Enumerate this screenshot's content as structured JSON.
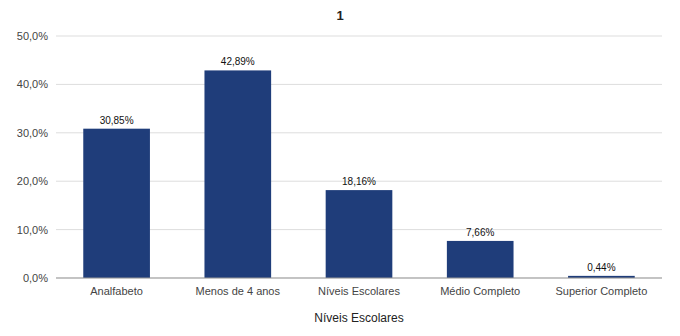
{
  "chart_data": {
    "type": "bar",
    "title": "1",
    "xlabel": "Níveis Escolares",
    "categories": [
      "Analfabeto",
      "Menos de 4 anos",
      "Níveis Escolares",
      "Médio Completo",
      "Superior Completo"
    ],
    "values": [
      30.85,
      42.89,
      18.16,
      7.66,
      0.44
    ],
    "value_labels": [
      "30,85%",
      "42,89%",
      "18,16%",
      "7,66%",
      "0,44%"
    ],
    "color": "#1F3D7A",
    "ylim": [
      0,
      50
    ],
    "yticks": [
      {
        "value": 0,
        "label": "0,0%"
      },
      {
        "value": 10,
        "label": "10,0%"
      },
      {
        "value": 20,
        "label": "20,0%"
      },
      {
        "value": 30,
        "label": "30,0%"
      },
      {
        "value": 40,
        "label": "40,0%"
      },
      {
        "value": 50,
        "label": "50,0%"
      }
    ],
    "grid": true,
    "data_labels": true
  }
}
